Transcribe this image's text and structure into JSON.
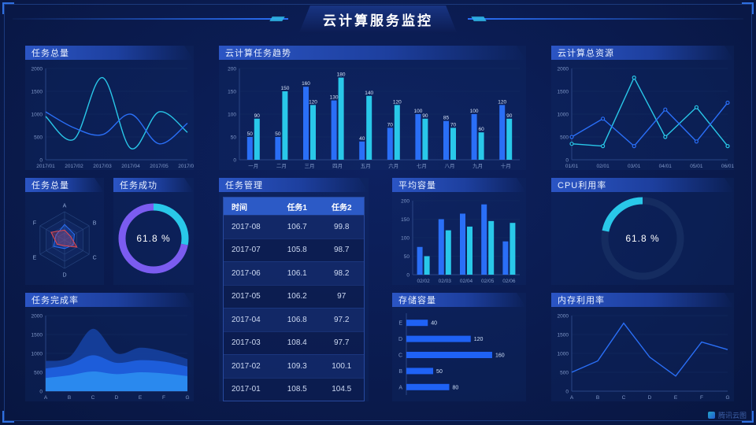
{
  "header": {
    "title": "云计算服务监控"
  },
  "watermark": "腾讯云图",
  "colors": {
    "blue": "#2a6ff7",
    "cyan": "#29c8e9",
    "purple": "#7b5cf0",
    "red": "#e8484d",
    "axis_text": "#8098c8",
    "grid": "#152e63"
  },
  "panels": {
    "task_total_line": {
      "title": "任务总量"
    },
    "task_trend": {
      "title": "云计算任务趋势"
    },
    "total_resources": {
      "title": "云计算总资源"
    },
    "task_radar": {
      "title": "任务总量"
    },
    "task_success": {
      "title": "任务成功",
      "value": "61.8 %"
    },
    "task_table": {
      "title": "任务管理",
      "columns": [
        "时间",
        "任务1",
        "任务2"
      ],
      "rows": [
        [
          "2017-08",
          "106.7",
          "99.8"
        ],
        [
          "2017-07",
          "105.8",
          "98.7"
        ],
        [
          "2017-06",
          "106.1",
          "98.2"
        ],
        [
          "2017-05",
          "106.2",
          "97"
        ],
        [
          "2017-04",
          "106.8",
          "97.2"
        ],
        [
          "2017-03",
          "108.4",
          "97.7"
        ],
        [
          "2017-02",
          "109.3",
          "100.1"
        ],
        [
          "2017-01",
          "108.5",
          "104.5"
        ]
      ]
    },
    "avg_capacity": {
      "title": "平均容量"
    },
    "cpu_usage": {
      "title": "CPU利用率",
      "value": "61.8 %"
    },
    "task_completion": {
      "title": "任务完成率"
    },
    "storage": {
      "title": "存储容量"
    },
    "memory_usage": {
      "title": "内存利用率"
    }
  },
  "chart_data": [
    {
      "id": "task_total_line",
      "type": "line",
      "title": "任务总量",
      "x": [
        "2017/01",
        "2017/02",
        "2017/03",
        "2017/04",
        "2017/05",
        "2017/06"
      ],
      "ylim": [
        0,
        2000
      ],
      "yticks": [
        0,
        500,
        1000,
        1500,
        2000
      ],
      "series": [
        {
          "name": "series-cyan",
          "color": "#29c8e9",
          "smooth": true,
          "values": [
            950,
            450,
            1800,
            250,
            1050,
            600
          ]
        },
        {
          "name": "series-blue",
          "color": "#2a6ff7",
          "smooth": true,
          "values": [
            1050,
            700,
            550,
            1000,
            350,
            800
          ]
        }
      ]
    },
    {
      "id": "task_trend",
      "type": "bar",
      "title": "云计算任务趋势",
      "x": [
        "一月",
        "二月",
        "三月",
        "四月",
        "五月",
        "六月",
        "七月",
        "八月",
        "九月",
        "十月"
      ],
      "ylim": [
        0,
        200
      ],
      "yticks": [
        0,
        50,
        100,
        150,
        200
      ],
      "labels": true,
      "series": [
        {
          "name": "任务1",
          "color": "#2a6ff7",
          "values": [
            50,
            50,
            160,
            130,
            40,
            70,
            100,
            85,
            100,
            120
          ]
        },
        {
          "name": "任务2",
          "color": "#29c8e9",
          "values": [
            90,
            150,
            120,
            180,
            140,
            120,
            90,
            70,
            60,
            90
          ]
        }
      ]
    },
    {
      "id": "total_resources",
      "type": "line",
      "title": "云计算总资源",
      "x": [
        "01/01",
        "02/01",
        "03/01",
        "04/01",
        "05/01",
        "06/01"
      ],
      "ylim": [
        0,
        2000
      ],
      "yticks": [
        0,
        500,
        1000,
        1500,
        2000
      ],
      "markers": true,
      "series": [
        {
          "name": "series-cyan",
          "color": "#29c8e9",
          "values": [
            350,
            300,
            1800,
            500,
            1150,
            300
          ]
        },
        {
          "name": "series-blue",
          "color": "#2a6ff7",
          "values": [
            500,
            900,
            300,
            1100,
            400,
            1250
          ]
        }
      ]
    },
    {
      "id": "task_radar",
      "type": "radar",
      "title": "任务总量",
      "axes": [
        "A",
        "B",
        "C",
        "D",
        "E",
        "F"
      ],
      "series": [
        {
          "name": "blue",
          "color": "#2a6ff7",
          "values": [
            0.55,
            0.4,
            0.35,
            0.3,
            0.45,
            0.35
          ]
        },
        {
          "name": "red",
          "color": "#e8484d",
          "values": [
            0.35,
            0.25,
            0.5,
            0.2,
            0.3,
            0.55
          ]
        }
      ]
    },
    {
      "id": "task_success",
      "type": "donut",
      "title": "任务成功",
      "value": 61.8,
      "segments": [
        {
          "color": "#29c8e9",
          "frac": 0.28
        },
        {
          "color": "#7b5cf0",
          "frac": 0.72
        }
      ]
    },
    {
      "id": "avg_capacity",
      "type": "bar",
      "title": "平均容量",
      "x": [
        "02/02",
        "02/03",
        "02/04",
        "02/05",
        "02/06"
      ],
      "ylim": [
        0,
        200
      ],
      "yticks": [
        0,
        50,
        100,
        150,
        200
      ],
      "labels": false,
      "series": [
        {
          "name": "s1",
          "color": "#2a6ff7",
          "values": [
            75,
            150,
            165,
            190,
            90
          ]
        },
        {
          "name": "s2",
          "color": "#29c8e9",
          "values": [
            50,
            120,
            130,
            145,
            140
          ]
        }
      ]
    },
    {
      "id": "cpu_usage",
      "type": "donut",
      "title": "CPU利用率",
      "value": 61.8,
      "segments": [
        {
          "color": "#29c8e9",
          "frac": 0.82,
          "start": 0.78
        }
      ]
    },
    {
      "id": "task_completion",
      "type": "area",
      "title": "任务完成率",
      "x": [
        "A",
        "B",
        "C",
        "D",
        "E",
        "F",
        "G"
      ],
      "ylim": [
        0,
        2000
      ],
      "yticks": [
        0,
        500,
        1000,
        1500,
        2000
      ],
      "stacked": true,
      "series": [
        {
          "name": "s1",
          "color": "#2b8df0",
          "values": [
            350,
            420,
            520,
            450,
            500,
            470,
            400
          ]
        },
        {
          "name": "s2",
          "color": "#1e5fe0",
          "values": [
            250,
            280,
            430,
            300,
            320,
            310,
            250
          ]
        },
        {
          "name": "s3",
          "color": "#16409e",
          "values": [
            200,
            200,
            700,
            250,
            330,
            270,
            200
          ]
        }
      ]
    },
    {
      "id": "storage",
      "type": "hbar",
      "title": "存储容量",
      "categories": [
        "E",
        "D",
        "C",
        "B",
        "A"
      ],
      "values": [
        40,
        120,
        160,
        50,
        80
      ],
      "xlim": [
        0,
        185
      ],
      "color": "#1f62f5"
    },
    {
      "id": "memory_usage",
      "type": "line",
      "title": "内存利用率",
      "x": [
        "A",
        "B",
        "C",
        "D",
        "E",
        "F",
        "G"
      ],
      "ylim": [
        0,
        2000
      ],
      "yticks": [
        0,
        500,
        1000,
        1500,
        2000
      ],
      "series": [
        {
          "name": "s1",
          "color": "#2a6ff7",
          "values": [
            500,
            800,
            1800,
            900,
            400,
            1300,
            1100
          ]
        }
      ]
    }
  ]
}
